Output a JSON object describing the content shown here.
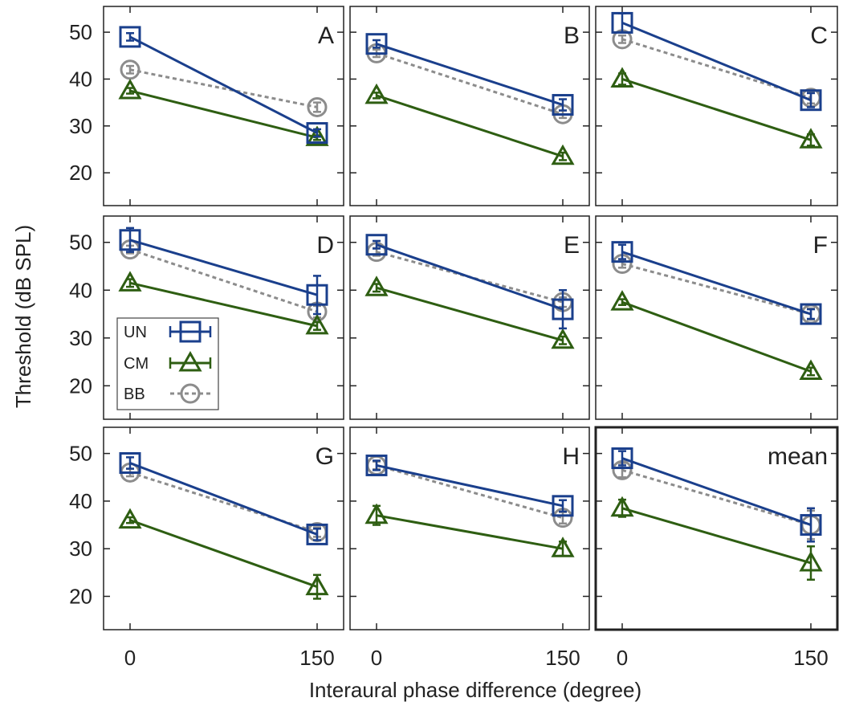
{
  "chart_data": {
    "type": "line",
    "xlabel": "Interaural phase difference (degree)",
    "ylabel": "Threshold (dB SPL)",
    "x_categories": [
      "0",
      "150"
    ],
    "x_values": [
      0,
      150
    ],
    "y_ticks": [
      "20",
      "30",
      "40",
      "50"
    ],
    "ylim": [
      13,
      55.5
    ],
    "grid": false,
    "legend": {
      "location": "left of middle row (panel D)",
      "entries": [
        {
          "key": "UN",
          "label": "UN"
        },
        {
          "key": "CM",
          "label": "CM"
        },
        {
          "key": "BB",
          "label": "BB"
        }
      ]
    },
    "series_styles": {
      "UN": {
        "color": "#1a3f8c",
        "marker": "square",
        "dashed": false
      },
      "CM": {
        "color": "#2e5e12",
        "marker": "triangle",
        "dashed": false
      },
      "BB": {
        "color": "#8c8c8c",
        "marker": "circle",
        "dashed": true
      }
    },
    "panels": [
      {
        "label": "A",
        "series": {
          "UN": {
            "y": [
              49,
              28.5
            ],
            "err": [
              0.8,
              0.8
            ]
          },
          "CM": {
            "y": [
              37.5,
              27.5
            ],
            "err": [
              0.6,
              0.5
            ]
          },
          "BB": {
            "y": [
              42,
              34
            ],
            "err": [
              0.8,
              1.0
            ]
          }
        }
      },
      {
        "label": "B",
        "series": {
          "UN": {
            "y": [
              47.5,
              34.5
            ],
            "err": [
              0.8,
              1.2
            ]
          },
          "CM": {
            "y": [
              36.5,
              23.5
            ],
            "err": [
              0.6,
              0.8
            ]
          },
          "BB": {
            "y": [
              45.5,
              32.5
            ],
            "err": [
              0.8,
              0.8
            ]
          }
        }
      },
      {
        "label": "C",
        "series": {
          "UN": {
            "y": [
              52,
              35.5
            ],
            "err": [
              2.0,
              1.5
            ]
          },
          "CM": {
            "y": [
              40,
              27
            ],
            "err": [
              1.2,
              1.2
            ]
          },
          "BB": {
            "y": [
              48.5,
              36
            ],
            "err": [
              0.8,
              1.2
            ]
          }
        }
      },
      {
        "label": "D",
        "series": {
          "UN": {
            "y": [
              50.5,
              39
            ],
            "err": [
              2.5,
              4.0
            ]
          },
          "CM": {
            "y": [
              41.5,
              32.5
            ],
            "err": [
              0.8,
              0.8
            ]
          },
          "BB": {
            "y": [
              48.5,
              35.5
            ],
            "err": [
              0.8,
              1.2
            ]
          }
        }
      },
      {
        "label": "E",
        "series": {
          "UN": {
            "y": [
              49.5,
              36
            ],
            "err": [
              0.8,
              4.0
            ]
          },
          "CM": {
            "y": [
              40.5,
              29.5
            ],
            "err": [
              0.8,
              0.8
            ]
          },
          "BB": {
            "y": [
              48,
              37.5
            ],
            "err": [
              0.8,
              1.0
            ]
          }
        }
      },
      {
        "label": "F",
        "series": {
          "UN": {
            "y": [
              48,
              35
            ],
            "err": [
              1.5,
              1.0
            ]
          },
          "CM": {
            "y": [
              37.5,
              23
            ],
            "err": [
              0.6,
              0.8
            ]
          },
          "BB": {
            "y": [
              45.5,
              35
            ],
            "err": [
              0.8,
              1.2
            ]
          }
        }
      },
      {
        "label": "G",
        "series": {
          "UN": {
            "y": [
              48,
              33
            ],
            "err": [
              1.2,
              1.2
            ]
          },
          "CM": {
            "y": [
              36,
              22
            ],
            "err": [
              0.6,
              2.5
            ]
          },
          "BB": {
            "y": [
              46,
              33.5
            ],
            "err": [
              0.8,
              1.0
            ]
          }
        }
      },
      {
        "label": "H",
        "series": {
          "UN": {
            "y": [
              47.5,
              39
            ],
            "err": [
              1.0,
              1.2
            ]
          },
          "CM": {
            "y": [
              37,
              30
            ],
            "err": [
              2.0,
              1.5
            ]
          },
          "BB": {
            "y": [
              47.5,
              36.5
            ],
            "err": [
              0.8,
              1.2
            ]
          }
        }
      },
      {
        "label": "mean",
        "series": {
          "UN": {
            "y": [
              49,
              35
            ],
            "err": [
              1.5,
              3.5
            ]
          },
          "CM": {
            "y": [
              38.5,
              27
            ],
            "err": [
              1.8,
              3.5
            ]
          },
          "BB": {
            "y": [
              46.5,
              35
            ],
            "err": [
              1.5,
              3.0
            ]
          }
        }
      }
    ]
  }
}
